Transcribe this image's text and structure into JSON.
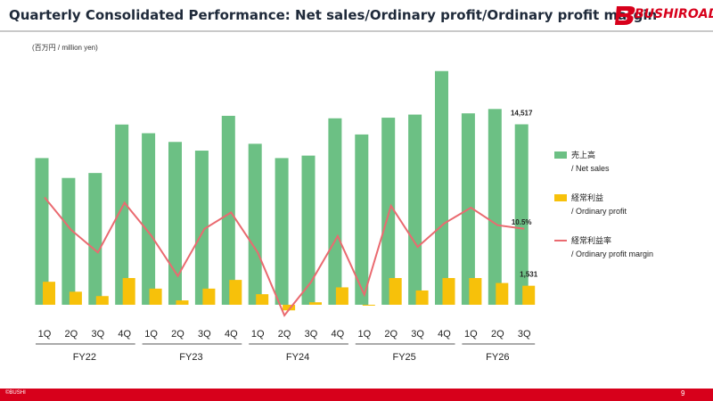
{
  "header": {
    "title": "Quarterly Consolidated Performance: Net sales/Ordinary profit/Ordinary profit margin",
    "logo_text": "BUSHIROAD"
  },
  "unit_label": "(百万円 / million yen)",
  "footer": {
    "copyright": "©BUSHI",
    "page_number": "9"
  },
  "legend": {
    "net_sales_jp": "売上高",
    "net_sales_en": "/ Net sales",
    "ordinary_profit_jp": "経常利益",
    "ordinary_profit_en": "/ Ordinary profit",
    "margin_jp": "経常利益率",
    "margin_en": "/ Ordinary profit margin"
  },
  "colors": {
    "net_sales": "#6cc084",
    "ordinary_profit": "#f7c10a",
    "margin": "#ea6a70",
    "brand": "#d7001b"
  },
  "chart_data": {
    "type": "bar",
    "categories": [
      "1Q",
      "2Q",
      "3Q",
      "4Q",
      "1Q",
      "2Q",
      "3Q",
      "4Q",
      "1Q",
      "2Q",
      "3Q",
      "4Q",
      "1Q",
      "2Q",
      "3Q",
      "4Q",
      "1Q",
      "2Q",
      "3Q"
    ],
    "groups": [
      {
        "label": "FY22",
        "count": 4
      },
      {
        "label": "FY23",
        "count": 4
      },
      {
        "label": "FY24",
        "count": 4
      },
      {
        "label": "FY25",
        "count": 4
      },
      {
        "label": "FY26",
        "count": 3
      }
    ],
    "series": [
      {
        "name": "売上高 / Net sales",
        "type": "bar",
        "values": [
          11800,
          10200,
          10600,
          14500,
          13800,
          13100,
          12400,
          15200,
          12950,
          11800,
          12000,
          15000,
          13700,
          15050,
          15300,
          18800,
          15400,
          15750,
          14517
        ]
      },
      {
        "name": "経常利益 / Ordinary profit",
        "type": "bar",
        "values": [
          1850,
          1050,
          700,
          2150,
          1300,
          350,
          1300,
          2000,
          850,
          -450,
          200,
          1400,
          -50,
          2150,
          1150,
          2150,
          2150,
          1750,
          1531
        ]
      },
      {
        "name": "経常利益率 / Ordinary profit margin",
        "type": "line",
        "unit": "%",
        "values": [
          15.7,
          10.3,
          6.6,
          14.8,
          9.4,
          2.7,
          10.5,
          13.2,
          6.6,
          -3.8,
          1.7,
          9.3,
          -0.4,
          14.3,
          7.5,
          11.4,
          14.0,
          11.1,
          10.5
        ]
      }
    ],
    "data_labels": [
      {
        "series": 0,
        "index": 18,
        "text": "14,517"
      },
      {
        "series": 1,
        "index": 18,
        "text": "1,531"
      },
      {
        "series": 2,
        "index": 18,
        "text": "10.5%"
      }
    ],
    "ylim_bars": [
      -1000,
      19500
    ],
    "ylim_margin": [
      -10,
      38
    ],
    "grid": false,
    "legend_position": "right"
  }
}
